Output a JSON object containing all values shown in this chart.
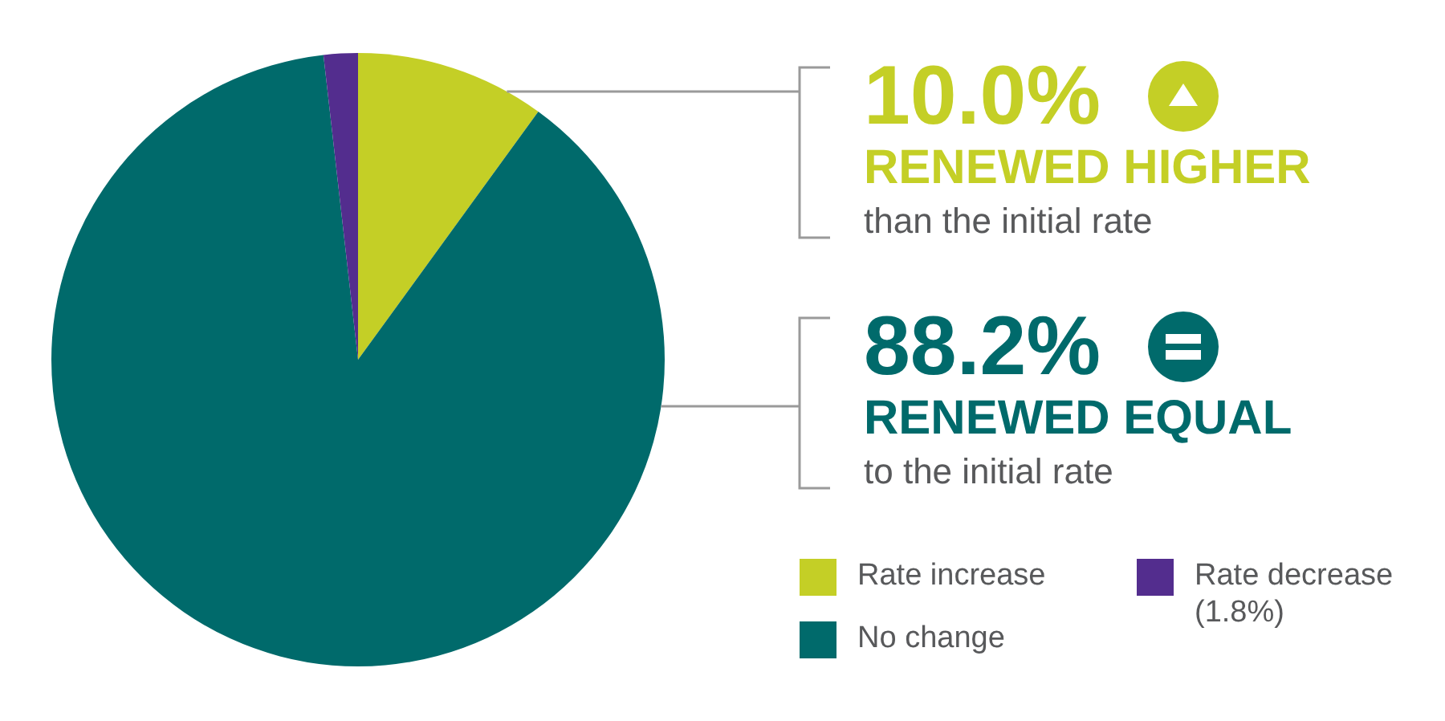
{
  "chart_data": {
    "type": "pie",
    "categories": [
      "Rate increase",
      "No change",
      "Rate decrease"
    ],
    "values": [
      10.0,
      88.2,
      1.8
    ],
    "colors": [
      "#c4cf26",
      "#006a6b",
      "#532d8e"
    ],
    "value_labels": [
      "10.0%",
      "88.2%",
      "(1.8%)"
    ],
    "annotations": [
      "RENEWED HIGHER",
      "than the initial rate",
      "RENEWED EQUAL",
      "to the initial rate"
    ],
    "legend": "bottom right"
  }
}
